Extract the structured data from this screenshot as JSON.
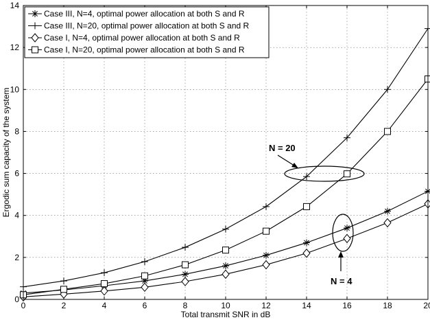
{
  "chart_data": {
    "type": "line",
    "title": "",
    "xlabel": "Total transmit SNR in dB",
    "ylabel": "Ergodic sum capacity of the system",
    "xlim": [
      0,
      20
    ],
    "ylim": [
      0,
      14
    ],
    "xticks": [
      0,
      2,
      4,
      6,
      8,
      10,
      12,
      14,
      16,
      18,
      20
    ],
    "yticks": [
      0,
      2,
      4,
      6,
      8,
      10,
      12,
      14
    ],
    "grid": true,
    "legend_position": "top-left",
    "x": [
      0,
      2,
      4,
      6,
      8,
      10,
      12,
      14,
      16,
      18,
      20
    ],
    "series": [
      {
        "name": "Case III, N=4, optimal power allocation at both S and R",
        "marker": "asterisk",
        "values": [
          0.3,
          0.45,
          0.65,
          0.88,
          1.2,
          1.6,
          2.1,
          2.7,
          3.4,
          4.2,
          5.15
        ]
      },
      {
        "name": "Case III, N=20, optimal power allocation at both S and R",
        "marker": "plus",
        "values": [
          0.6,
          0.88,
          1.27,
          1.8,
          2.48,
          3.35,
          4.42,
          5.85,
          7.7,
          10.0,
          12.9
        ]
      },
      {
        "name": "Case I, N=4, optimal power allocation at both S and R",
        "marker": "diamond",
        "values": [
          0.12,
          0.25,
          0.4,
          0.58,
          0.85,
          1.2,
          1.65,
          2.2,
          2.9,
          3.65,
          4.55
        ]
      },
      {
        "name": "Case I, N=20, optimal power allocation at both S and R",
        "marker": "square",
        "values": [
          0.22,
          0.48,
          0.75,
          1.12,
          1.65,
          2.35,
          3.25,
          4.42,
          5.98,
          8.0,
          10.5
        ]
      }
    ],
    "annotations": [
      {
        "text": "N = 20"
      },
      {
        "text": "N = 4"
      }
    ]
  }
}
